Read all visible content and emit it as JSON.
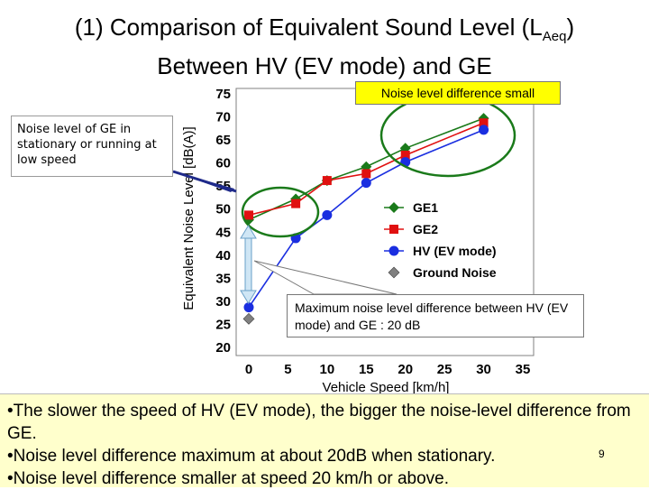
{
  "slide": {
    "title_line1_main": "(1) Comparison of Equivalent Sound Level (L",
    "title_line1_sub": "Aeq",
    "title_line1_end": ")",
    "title_line2": "Between HV (EV mode) and GE",
    "callout_left": "Noise level of GE in stationary or running at low speed",
    "callout_top": "Noise level difference small",
    "callout_bottom": "Maximum noise level difference between HV (EV mode) and GE : 20 dB",
    "bullets": [
      "•The slower the speed of HV (EV mode), the bigger the noise-level difference from GE.",
      "•Noise level difference maximum at about 20dB when stationary.",
      "•Noise level difference smaller at speed 20 km/h or above."
    ],
    "page_number": "9"
  },
  "chart_data": {
    "type": "line",
    "xlabel": "Vehicle Speed  [km/h]",
    "ylabel": "Equivalent Noise Level  [dB(A)]",
    "xlim": [
      0,
      35
    ],
    "ylim": [
      20,
      75
    ],
    "xticks": [
      "0",
      "5",
      "10",
      "15",
      "20",
      "25",
      "30",
      "35"
    ],
    "yticks": [
      "20",
      "25",
      "30",
      "35",
      "40",
      "45",
      "50",
      "55",
      "60",
      "65",
      "70",
      "75"
    ],
    "grid": false,
    "legend_position": "right-inside",
    "series": [
      {
        "name": "GE1",
        "color": "#1a7a1a",
        "marker": "diamond",
        "x": [
          0,
          6,
          10,
          15,
          20,
          30
        ],
        "y": [
          47.5,
          52,
          56,
          59,
          63,
          69.5
        ]
      },
      {
        "name": "GE2",
        "color": "#e01010",
        "marker": "square",
        "x": [
          0,
          6,
          10,
          15,
          20,
          30
        ],
        "y": [
          48.5,
          51,
          56,
          57.5,
          61.5,
          68.5
        ]
      },
      {
        "name": "HV (EV mode)",
        "color": "#1a2ee0",
        "marker": "circle",
        "x": [
          0,
          6,
          10,
          15,
          20,
          30
        ],
        "y": [
          28.5,
          43.5,
          48.5,
          55.5,
          60,
          67
        ]
      },
      {
        "name": "Ground Noise",
        "color": "#808080",
        "marker": "diamond",
        "line": false,
        "x": [
          0
        ],
        "y": [
          26
        ]
      }
    ]
  }
}
